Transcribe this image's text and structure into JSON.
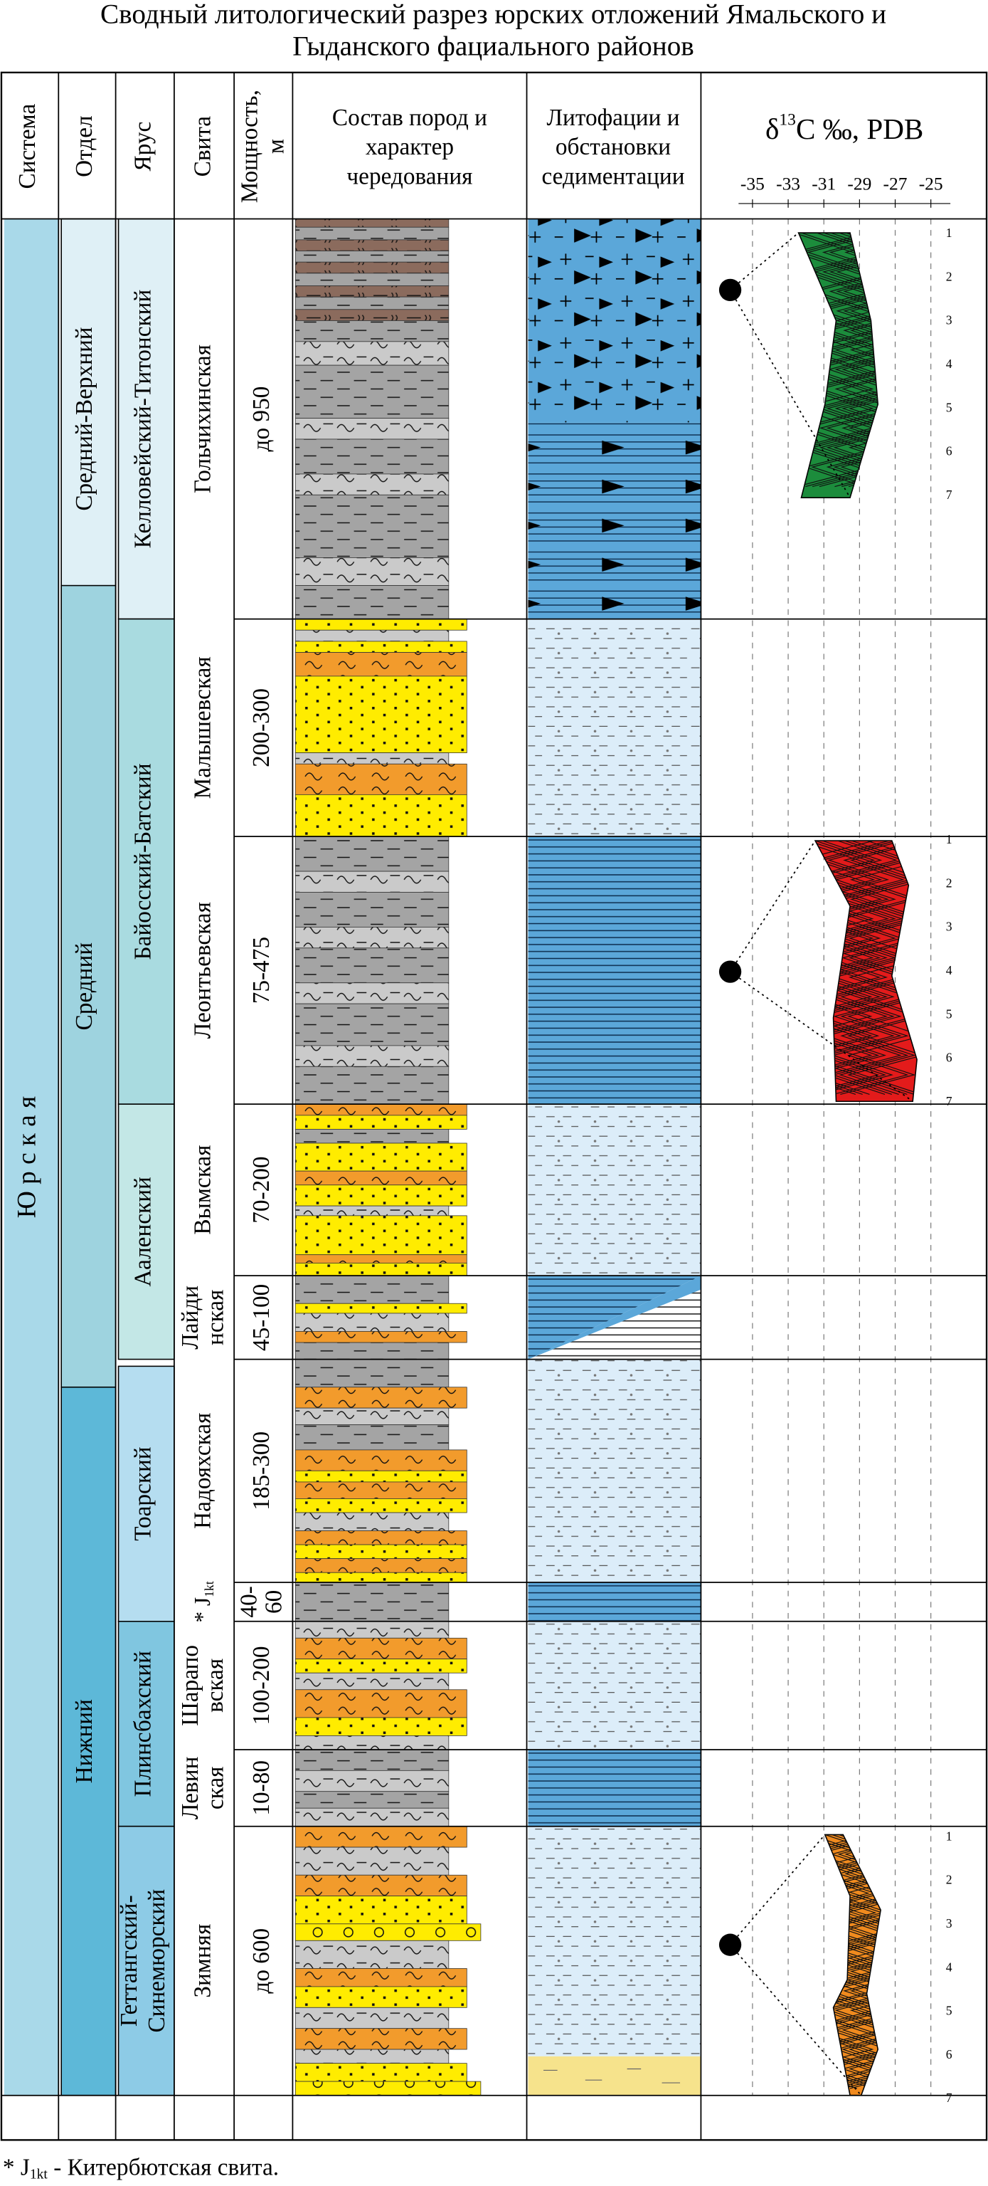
{
  "title_lines": [
    "Сводный литологический разрез юрских отложений Ямальского и",
    "Гыданского фациального районов"
  ],
  "headers": {
    "system": [
      "Система"
    ],
    "division": [
      "Отдел"
    ],
    "stage": [
      "Ярус"
    ],
    "formation": [
      "Свита"
    ],
    "thickness": [
      "Мощность,",
      "м"
    ],
    "lithology": [
      "Состав пород и",
      "характер",
      "чередования"
    ],
    "facies": [
      "Литофации и",
      "обстановки",
      "седиментации"
    ],
    "isotope": {
      "symbol": "δ",
      "sup": "13",
      "rest": "C ‰, PDB"
    }
  },
  "isotope_scale": [
    -35,
    -33,
    -31,
    -29,
    -27,
    -25
  ],
  "sample_numbers": [
    1,
    2,
    3,
    4,
    5,
    6,
    7
  ],
  "system": "Ю р с к а я",
  "divisions": [
    [
      "Средний-Верхний"
    ],
    [
      "Средний"
    ],
    [
      "Нижний"
    ]
  ],
  "stages": [
    [
      "Келловейский-Титонский"
    ],
    [
      "Байосский-Батский"
    ],
    [
      "Ааленский"
    ],
    [
      "Тоарский"
    ],
    [
      "Плинсбахский"
    ],
    [
      "Геттангский-",
      "Синемюрский"
    ]
  ],
  "formations": [
    {
      "name": [
        "Гольчихинская"
      ],
      "thickness": [
        "до 950"
      ]
    },
    {
      "name": [
        "Малышевская"
      ],
      "thickness": [
        "200-300"
      ]
    },
    {
      "name": [
        "Леонтьевская"
      ],
      "thickness": [
        "75-475"
      ]
    },
    {
      "name": [
        "Вымская"
      ],
      "thickness": [
        "70-200"
      ]
    },
    {
      "name": [
        "Лайди",
        "нская"
      ],
      "thickness": [
        "45-100"
      ]
    },
    {
      "name": [
        "Надояхская"
      ],
      "thickness": [
        "185-300"
      ]
    },
    {
      "name": {
        "prefix": "* J",
        "sub": "1kt"
      },
      "thickness": [
        "40-",
        "60"
      ]
    },
    {
      "name": [
        "Шарапо",
        "вская"
      ],
      "thickness": [
        "100-200"
      ]
    },
    {
      "name": [
        "Левин",
        "ская"
      ],
      "thickness": [
        "10-80"
      ]
    },
    {
      "name": [
        "Зимняя"
      ],
      "thickness": [
        "до 600"
      ]
    }
  ],
  "footnote": {
    "prefix": "* J",
    "sub": "1kt",
    "text": " - Китербютская свита."
  }
}
